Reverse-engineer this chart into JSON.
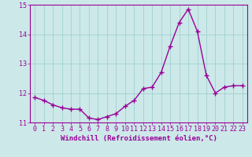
{
  "x": [
    0,
    1,
    2,
    3,
    4,
    5,
    6,
    7,
    8,
    9,
    10,
    11,
    12,
    13,
    14,
    15,
    16,
    17,
    18,
    19,
    20,
    21,
    22,
    23
  ],
  "y": [
    11.85,
    11.75,
    11.6,
    11.5,
    11.45,
    11.45,
    11.15,
    11.1,
    11.2,
    11.3,
    11.55,
    11.75,
    12.15,
    12.2,
    12.7,
    13.6,
    14.4,
    14.85,
    14.1,
    12.6,
    12.0,
    12.2,
    12.25,
    12.25
  ],
  "line_color": "#990099",
  "marker": "+",
  "marker_size": 4,
  "bg_color": "#cce8e8",
  "grid_color": "#99cccc",
  "xlabel": "Windchill (Refroidissement éolien,°C)",
  "ylabel": "",
  "ylim": [
    11.0,
    15.0
  ],
  "xlim": [
    -0.5,
    23.5
  ],
  "yticks": [
    11,
    12,
    13,
    14,
    15
  ],
  "xticks": [
    0,
    1,
    2,
    3,
    4,
    5,
    6,
    7,
    8,
    9,
    10,
    11,
    12,
    13,
    14,
    15,
    16,
    17,
    18,
    19,
    20,
    21,
    22,
    23
  ],
  "line_width": 1.0,
  "xlabel_fontsize": 6.5,
  "tick_fontsize": 6.0,
  "xlabel_color": "#990099",
  "tick_color": "#990099",
  "axis_color": "#990099",
  "marker_color": "#990099"
}
